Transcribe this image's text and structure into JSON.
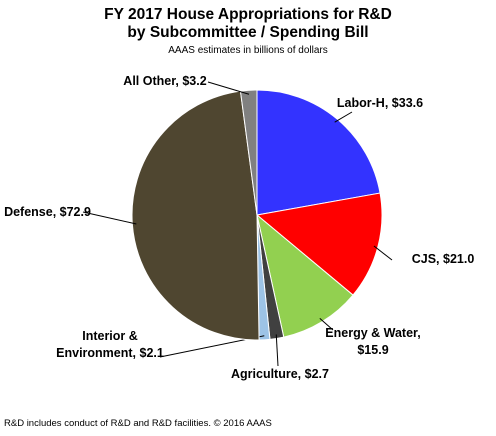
{
  "chart_data": {
    "type": "pie",
    "title": "FY 2017 House Appropriations for R&D by Subcommittee / Spending Bill",
    "subtitle": "AAAS estimates in billions of dollars",
    "note": "R&D includes conduct of R&D and R&D facilities. © 2016 AAAS",
    "categories": [
      "Labor-H,",
      "CJS,",
      "Energy & Water,",
      "Agriculture,",
      "Interior & Environment,",
      "Defense,",
      "All Other,"
    ],
    "values": [
      33.6,
      21.0,
      15.9,
      2.7,
      2.1,
      72.9,
      3.2
    ],
    "value_labels": [
      "$33.6",
      "$21.0",
      "$15.9",
      "$2.7",
      "$2.1",
      "$72.9",
      "$3.2"
    ],
    "colors": [
      "#3333ff",
      "#ff0000",
      "#92d050",
      "#404040",
      "#9dc3e6",
      "#4f4630",
      "#808080"
    ]
  }
}
